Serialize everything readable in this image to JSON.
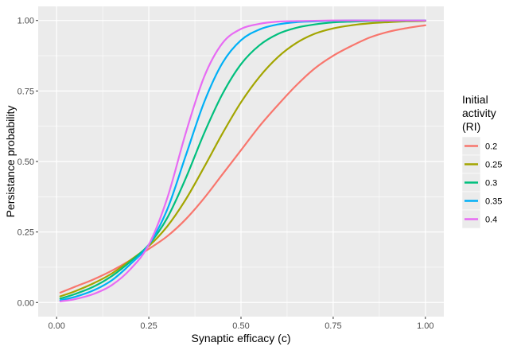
{
  "chart_data": {
    "type": "line",
    "title": "",
    "xlabel": "Synaptic efficacy (c)",
    "ylabel": "Persistance probability",
    "xlim": [
      -0.05,
      1.05
    ],
    "ylim": [
      -0.05,
      1.05
    ],
    "xticks": [
      0.0,
      0.25,
      0.5,
      0.75,
      1.0
    ],
    "xtick_labels": [
      "0.00",
      "0.25",
      "0.50",
      "0.75",
      "1.00"
    ],
    "yticks": [
      0.0,
      0.25,
      0.5,
      0.75,
      1.0
    ],
    "ytick_labels": [
      "0.00",
      "0.25",
      "0.50",
      "0.75",
      "1.00"
    ],
    "grid": true,
    "legend": {
      "title_lines": [
        "Initial",
        "activity",
        "(RI)"
      ],
      "position": "right"
    },
    "x": [
      0.01,
      0.05,
      0.1,
      0.15,
      0.2,
      0.25,
      0.3,
      0.35,
      0.4,
      0.45,
      0.5,
      0.55,
      0.6,
      0.65,
      0.7,
      0.75,
      0.8,
      0.85,
      0.9,
      0.95,
      1.0
    ],
    "series": [
      {
        "name": "0.2",
        "color": "#F8766D",
        "values": [
          0.035,
          0.056,
          0.082,
          0.113,
          0.15,
          0.19,
          0.235,
          0.295,
          0.37,
          0.455,
          0.54,
          0.625,
          0.7,
          0.77,
          0.83,
          0.875,
          0.91,
          0.94,
          0.96,
          0.973,
          0.983
        ]
      },
      {
        "name": "0.25",
        "color": "#A3A500",
        "values": [
          0.022,
          0.04,
          0.068,
          0.103,
          0.15,
          0.2,
          0.27,
          0.365,
          0.48,
          0.6,
          0.71,
          0.8,
          0.87,
          0.92,
          0.953,
          0.972,
          0.983,
          0.99,
          0.994,
          0.997,
          0.998
        ]
      },
      {
        "name": "0.3",
        "color": "#00BF7D",
        "values": [
          0.014,
          0.03,
          0.056,
          0.094,
          0.145,
          0.205,
          0.3,
          0.44,
          0.6,
          0.74,
          0.845,
          0.912,
          0.952,
          0.974,
          0.986,
          0.993,
          0.996,
          0.998,
          0.999,
          0.999,
          1.0
        ]
      },
      {
        "name": "0.35",
        "color": "#00B0F6",
        "values": [
          0.008,
          0.02,
          0.043,
          0.079,
          0.136,
          0.205,
          0.33,
          0.52,
          0.71,
          0.85,
          0.93,
          0.968,
          0.986,
          0.994,
          0.997,
          0.999,
          1.0,
          1.0,
          1.0,
          1.0,
          1.0
        ]
      },
      {
        "name": "0.4",
        "color": "#E76BF3",
        "values": [
          0.004,
          0.012,
          0.03,
          0.062,
          0.118,
          0.205,
          0.37,
          0.6,
          0.8,
          0.92,
          0.97,
          0.988,
          0.996,
          0.998,
          0.999,
          1.0,
          1.0,
          1.0,
          1.0,
          1.0,
          1.0
        ]
      }
    ]
  }
}
